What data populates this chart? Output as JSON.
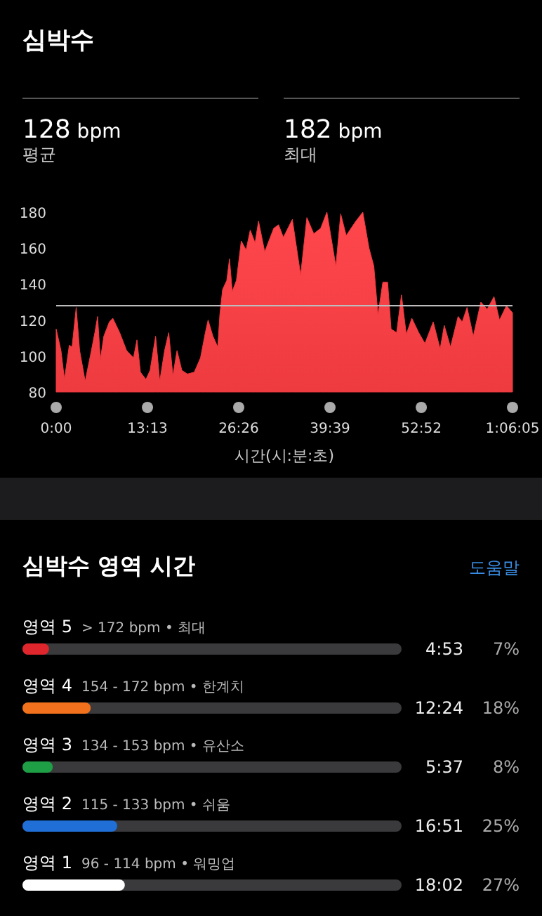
{
  "chart_data": [
    {
      "type": "area",
      "title": "심박수",
      "annotations": [
        "128 bpm",
        "평균",
        "182 bpm",
        "최대"
      ],
      "xlabel": "시간(시:분:초)",
      "color": "#ee3b40",
      "x": [
        0,
        0.7,
        1.2,
        1.9,
        2.3,
        2.9,
        3.4,
        4.2,
        5.1,
        5.6,
        6.0,
        6.4,
        6.9,
        7.7,
        8.2,
        9.2,
        10.2,
        11.2,
        11.7,
        12.2,
        13.0,
        13.6,
        14.4,
        15.0,
        15.7,
        16.3,
        16.9,
        17.5,
        18.2,
        19.0,
        20.0,
        20.9,
        21.6,
        22.0,
        22.7,
        23.4,
        23.7,
        24.1,
        24.7,
        25.1,
        25.5,
        26.1,
        26.8,
        27.5,
        28.1,
        28.8,
        29.3,
        30.2,
        31.5,
        32.2,
        32.9,
        34.2,
        35.4,
        36.3,
        37.3,
        38.3,
        39.2,
        40.5,
        41.2,
        42.0,
        43.4,
        44.4,
        45.3,
        46.0,
        46.6,
        47.3,
        48.0,
        48.5,
        49.3,
        50.0,
        50.7,
        51.5,
        52.5,
        53.4,
        54.6,
        55.6,
        56.2,
        57.1,
        58.2,
        58.8,
        59.5,
        60.4,
        61.5,
        62.4,
        63.4,
        64.2,
        65.2,
        66.08
      ],
      "values": [
        115,
        103,
        87,
        106,
        105,
        127,
        103,
        86,
        103,
        113,
        122,
        98,
        111,
        119,
        121,
        113,
        103,
        99,
        109,
        91,
        87,
        92,
        111,
        86,
        103,
        113,
        89,
        103,
        92,
        90,
        91,
        99,
        113,
        120,
        111,
        105,
        123,
        137,
        142,
        154,
        136,
        142,
        164,
        159,
        170,
        163,
        175,
        158,
        171,
        173,
        166,
        176,
        145,
        177,
        168,
        171,
        180,
        150,
        179,
        167,
        175,
        180,
        160,
        150,
        123,
        141,
        141,
        115,
        113,
        134,
        112,
        121,
        113,
        107,
        119,
        104,
        117,
        105,
        122,
        119,
        127,
        111,
        130,
        126,
        133,
        120,
        128,
        124
      ],
      "xlim": [
        0,
        66.08
      ],
      "xticks": [
        {
          "value": 0,
          "label": "0:00"
        },
        {
          "value": 13.22,
          "label": "13:13"
        },
        {
          "value": 26.43,
          "label": "26:26"
        },
        {
          "value": 39.65,
          "label": "39:39"
        },
        {
          "value": 52.87,
          "label": "52:52"
        },
        {
          "value": 66.08,
          "label": "1:06:05"
        }
      ],
      "ylim": [
        80,
        180
      ],
      "yticks": [
        80,
        100,
        120,
        140,
        160,
        180
      ],
      "grid": false,
      "ref_lines": [
        {
          "axis": "y",
          "value": 128,
          "color": "#bdbdbd"
        }
      ]
    },
    {
      "type": "bar",
      "orientation": "horizontal",
      "title": "심박수 영역 시간",
      "categories": [
        "영역 5",
        "영역 4",
        "영역 3",
        "영역 2",
        "영역 1"
      ],
      "values": [
        7,
        18,
        8,
        25,
        27
      ],
      "colors": [
        "#e0262d",
        "#f2711c",
        "#1e9e45",
        "#1f6fd6",
        "#ffffff"
      ],
      "value_labels": [
        "7%",
        "18%",
        "8%",
        "25%",
        "27%"
      ],
      "xlim": [
        0,
        100
      ],
      "annotations": [
        "도움말",
        "> 172 bpm • 최대",
        "4:53",
        "154 - 172 bpm • 한계치",
        "12:24",
        "134 - 153 bpm • 유산소",
        "5:37",
        "115 - 133 bpm • 쉬움",
        "16:51",
        "96 - 114 bpm • 워밍업",
        "18:02"
      ]
    }
  ]
}
